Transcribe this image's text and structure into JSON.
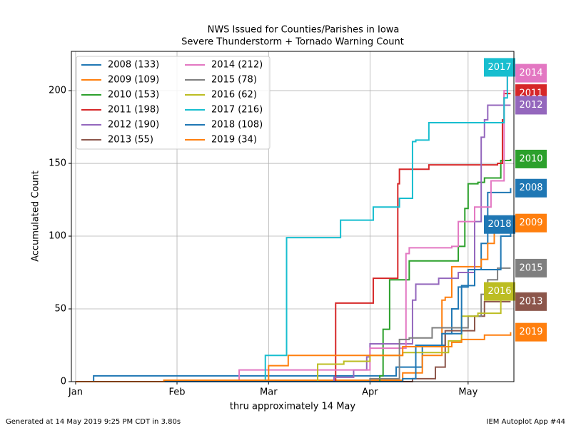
{
  "chart_data": {
    "type": "step",
    "title": "NWS Issued for Counties/Parishes in Iowa",
    "subtitle": "Severe Thunderstorm + Tornado Warning Count",
    "x_label": "thru approximately 14 May",
    "y_label": "Accumulated Count",
    "xlim": [
      -1.3,
      134
    ],
    "ylim": [
      0,
      227
    ],
    "xticks": [
      {
        "value": 0,
        "label": "Jan"
      },
      {
        "value": 31,
        "label": "Feb"
      },
      {
        "value": 59,
        "label": "Mar"
      },
      {
        "value": 90,
        "label": "Apr"
      },
      {
        "value": 120,
        "label": "May"
      }
    ],
    "yticks": [
      0,
      50,
      100,
      150,
      200
    ],
    "grid": true,
    "legend": "upper left",
    "footer_left": "Generated at 14 May 2019 9:25 PM CDT in 3.80s",
    "footer_right": "IEM Autoplot App #44",
    "series": [
      {
        "name": "2008 (133)",
        "label": "2008",
        "color": "#1f77b4",
        "x": [
          0,
          5.5,
          98,
          106,
          113,
          115,
          117,
          120,
          124,
          126,
          133
        ],
        "values": [
          0,
          4,
          10,
          25,
          33,
          50,
          65,
          77,
          95,
          130,
          133
        ]
      },
      {
        "name": "2009 (109)",
        "label": "2009",
        "color": "#ff7f0e",
        "x": [
          0,
          27,
          100,
          106,
          112,
          113,
          115,
          124,
          126,
          128,
          133
        ],
        "values": [
          0,
          1,
          6,
          18,
          56,
          58,
          79,
          84,
          95,
          105,
          109
        ]
      },
      {
        "name": "2010 (153)",
        "label": "2010",
        "color": "#2ca02c",
        "x": [
          0,
          93,
          94,
          96,
          102,
          117,
          119,
          120,
          123,
          125,
          130,
          133
        ],
        "values": [
          0,
          4,
          36,
          70,
          83,
          93,
          119,
          136,
          137,
          140,
          152,
          153
        ]
      },
      {
        "name": "2011 (198)",
        "label": "2011",
        "color": "#d62728",
        "x": [
          0,
          79.5,
          91,
          98.5,
          99,
          108,
          129,
          130.5,
          131,
          133
        ],
        "values": [
          0,
          54,
          71,
          136,
          146,
          149,
          150,
          180,
          198,
          198
        ]
      },
      {
        "name": "2012 (190)",
        "label": "2012",
        "color": "#9467bd",
        "x": [
          0,
          79,
          85,
          89,
          90,
          103,
          104,
          111,
          117,
          122,
          124,
          125,
          126,
          133
        ],
        "values": [
          0,
          3,
          8,
          17,
          26,
          56,
          67,
          71,
          75,
          110,
          168,
          180,
          190,
          190
        ]
      },
      {
        "name": "2013 (55)",
        "label": "2013",
        "color": "#8c564b",
        "x": [
          0,
          103,
          110,
          113,
          122,
          125,
          133
        ],
        "values": [
          0,
          2,
          10,
          35,
          45,
          55,
          55
        ]
      },
      {
        "name": "2014 (212)",
        "label": "2014",
        "color": "#e377c2",
        "x": [
          0,
          50,
          90,
          101,
          102,
          115,
          117,
          122,
          127,
          131,
          132,
          133
        ],
        "values": [
          0,
          8,
          23,
          88,
          92,
          93,
          110,
          120,
          138,
          200,
          212,
          212
        ]
      },
      {
        "name": "2015 (78)",
        "label": "2015",
        "color": "#7f7f7f",
        "x": [
          0,
          90,
          99,
          102,
          109,
          120,
          124,
          126,
          129,
          133
        ],
        "values": [
          0,
          2,
          29,
          30,
          37,
          45,
          60,
          70,
          78,
          78
        ]
      },
      {
        "name": "2016 (62)",
        "label": "2016",
        "color": "#bcbd22",
        "x": [
          0,
          74,
          82,
          90,
          100,
          114,
          118,
          123,
          130,
          133
        ],
        "values": [
          0,
          12,
          14,
          18,
          20,
          28,
          45,
          47,
          62,
          62
        ]
      },
      {
        "name": "2017 (216)",
        "label": "2017",
        "color": "#17becf",
        "x": [
          0,
          58,
          64.5,
          81,
          91,
          99,
          103,
          104,
          108,
          131,
          132,
          133
        ],
        "values": [
          0,
          18,
          99,
          111,
          120,
          126,
          165,
          166,
          178,
          195,
          216,
          216
        ]
      },
      {
        "name": "2018 (108)",
        "label": "2018",
        "color": "#1f77b4",
        "x": [
          0,
          100,
          104,
          112,
          118,
          122,
          130,
          133
        ],
        "values": [
          0,
          2,
          25,
          33,
          66,
          77,
          100,
          108
        ]
      },
      {
        "name": "2019 (34)",
        "label": "2019",
        "color": "#ff7f0e",
        "x": [
          0,
          27,
          59,
          65,
          100,
          115,
          118,
          125,
          133
        ],
        "values": [
          0,
          1,
          11,
          18,
          24,
          27,
          29,
          32,
          34
        ]
      }
    ]
  }
}
